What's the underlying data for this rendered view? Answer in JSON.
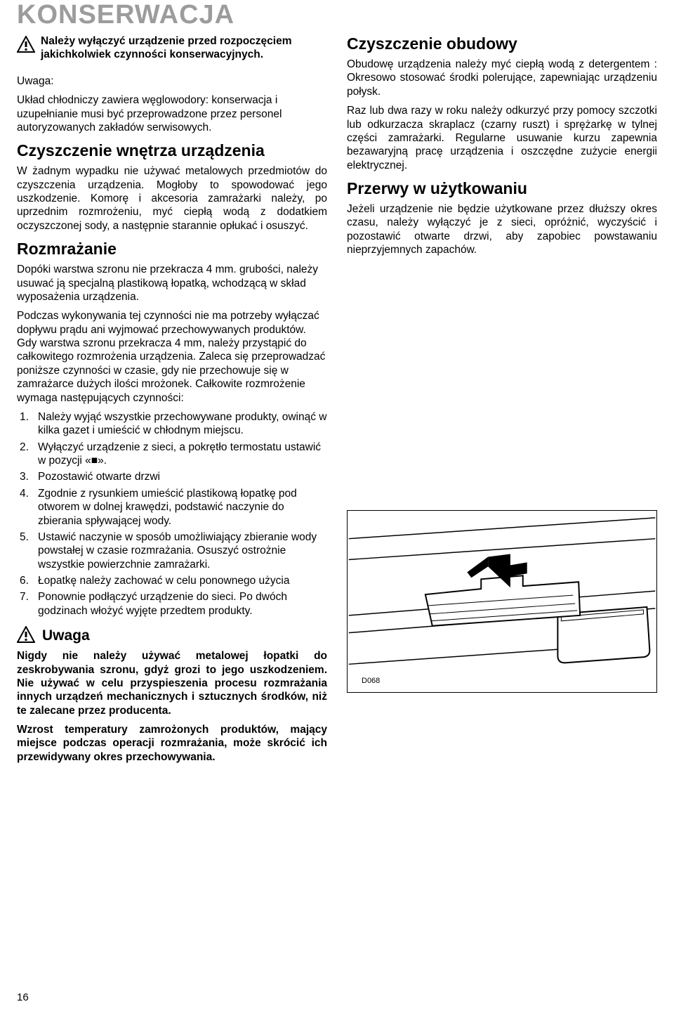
{
  "page_title": "KONSERWACJA",
  "warning_top": "Należy wyłączyć urządzenie przed rozpoczęciem jakichkolwiek czynności konserwacyjnych.",
  "uwaga_label": "Uwaga:",
  "uwaga_text": "Układ chłodniczy zawiera węglowodory: konserwacja i uzupełnianie musi być przeprowadzone przez personel autoryzowanych zakładów serwisowych.",
  "sec1_h": "Czyszczenie wnętrza urządzenia",
  "sec1_p": "W żadnym wypadku nie używać metalowych przedmiotów do czyszczenia urządzenia. Mogłoby to spowodować jego uszkodzenie. Komorę i akcesoria zamrażarki należy, po uprzednim rozmrożeniu, myć ciepłą wodą z dodatkiem oczyszczonej sody, a następnie starannie opłukać i osuszyć.",
  "sec2_h": "Rozmrażanie",
  "sec2_p1": "Dopóki warstwa szronu nie przekracza 4 mm. grubości, należy usuwać ją specjalną plastikową łopatką, wchodzącą w skład wyposażenia urządzenia.",
  "sec2_p2": "Podczas wykonywania tej czynności nie ma potrzeby wyłączać dopływu prądu ani wyjmować przechowywanych produktów. Gdy warstwa szronu przekracza 4 mm, należy przystąpić do całkowitego rozmrożenia urządzenia. Zaleca się przeprowadzać poniższe czynności w czasie, gdy nie przechowuje się w zamrażarce dużych ilości mrożonek. Całkowite rozmrożenie wymaga następujących czynności:",
  "steps": [
    "Należy wyjąć wszystkie przechowywane produkty, owinąć w kilka gazet i umieścić w chłodnym miejscu.",
    "Wyłączyć urządzenie z sieci, a pokrętło termostatu ustawić w pozycji «■».",
    "Pozostawić otwarte drzwi",
    "Zgodnie z rysunkiem umieścić plastikową łopatkę pod otworem w dolnej krawędzi, podstawić naczynie do zbierania spływającej wody.",
    "Ustawić naczynie w sposób umożliwiający zbieranie wody powstałej w czasie rozmrażania. Osuszyć ostrożnie wszystkie powierzchnie zamrażarki.",
    "Łopatkę należy zachować w celu ponownego użycia",
    "Ponownie podłączyć urządzenie do sieci. Po dwóch godzinach włożyć wyjęte przedtem produkty."
  ],
  "uwaga2_label": "Uwaga",
  "uwaga2_p1": "Nigdy nie należy używać metalowej łopatki do zeskrobywania szronu, gdyż grozi to jego uszkodzeniem. Nie używać w celu przyspieszenia procesu rozmrażania innych urządzeń mechanicznych i sztucznych środków, niż te zalecane przez producenta.",
  "uwaga2_p2": "Wzrost temperatury zamrożonych produktów, mający miejsce podczas operacji rozmrażania, może skrócić ich przewidywany okres przechowywania.",
  "sec3_h": "Czyszczenie obudowy",
  "sec3_p1": "Obudowę urządzenia należy myć ciepłą wodą z detergentem : Okresowo stosować środki polerujące, zapewniając urządzeniu połysk.",
  "sec3_p2": "Raz lub dwa razy w roku należy odkurzyć przy pomocy szczotki lub odkurzacza skraplacz (czarny ruszt) i sprężarkę w tylnej części zamrażarki. Regularne usuwanie kurzu zapewnia bezawaryjną pracę urządzenia i oszczędne zużycie energii elektrycznej.",
  "sec4_h": "Przerwy w użytkowaniu",
  "sec4_p": "Jeżeli urządzenie nie będzie użytkowane przez dłuższy okres czasu, należy wyłączyć je z sieci, opróżnić, wyczyścić i pozostawić otwarte drzwi, aby zapobiec powstawaniu nieprzyjemnych zapachów.",
  "figure_label": "D068",
  "page_number": "16"
}
